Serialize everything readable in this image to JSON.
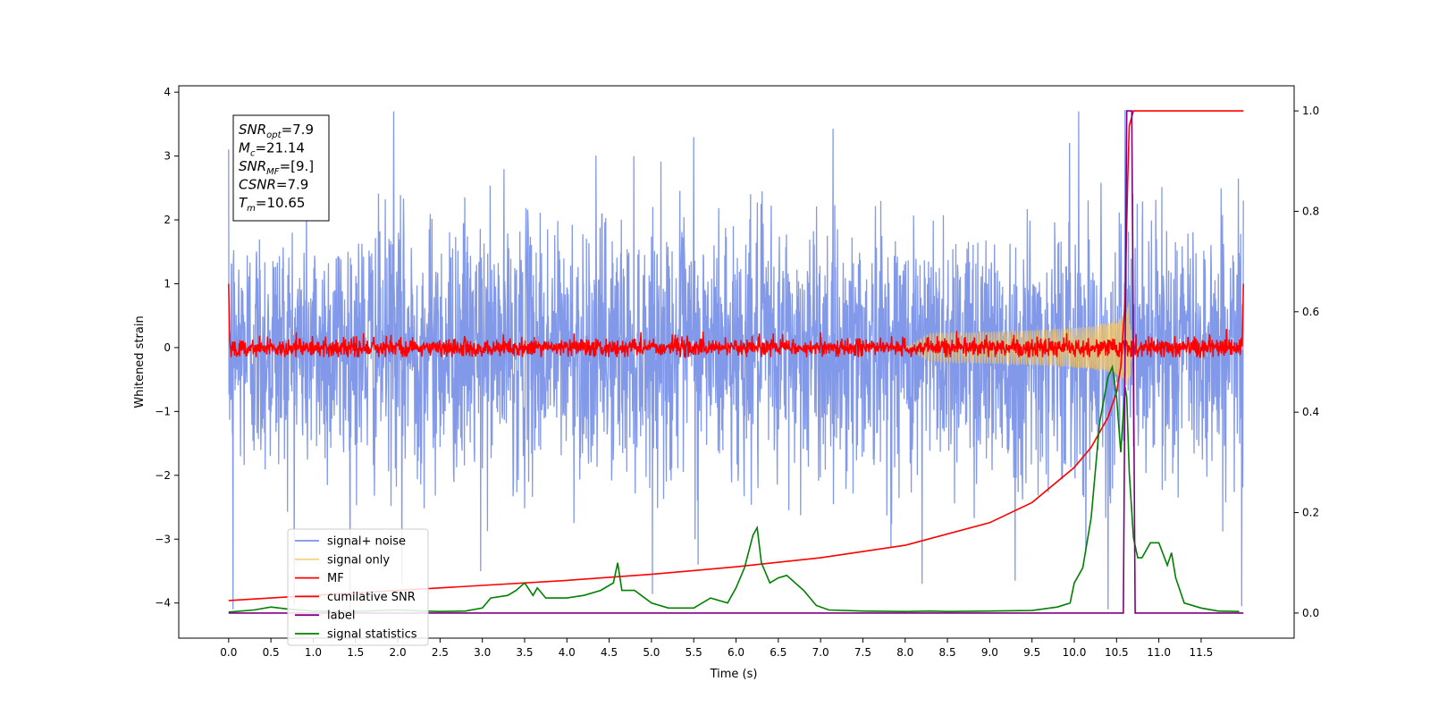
{
  "chart_data": {
    "type": "line",
    "xlabel": "Time (s)",
    "ylabel": "Whitened strain",
    "xlim": [
      -0.59,
      12.6
    ],
    "ylim": [
      -4.55,
      4.1
    ],
    "y2lim": [
      -0.05,
      1.05
    ],
    "x_ticks": [
      0.0,
      0.5,
      1.0,
      1.5,
      2.0,
      2.5,
      3.0,
      3.5,
      4.0,
      4.5,
      5.0,
      5.5,
      6.0,
      6.5,
      7.0,
      7.5,
      8.0,
      8.5,
      9.0,
      9.5,
      10.0,
      10.5,
      11.0,
      11.5
    ],
    "x_tick_labels": [
      "0.0",
      "0.5",
      "1.0",
      "1.5",
      "2.0",
      "2.5",
      "3.0",
      "3.5",
      "4.0",
      "4.5",
      "5.0",
      "5.5",
      "6.0",
      "6.5",
      "7.0",
      "7.5",
      "8.0",
      "8.5",
      "9.0",
      "9.5",
      "10.0",
      "10.5",
      "11.0",
      "11.5"
    ],
    "y_ticks": [
      -4,
      -3,
      -2,
      -1,
      0,
      1,
      2,
      3,
      4
    ],
    "y_tick_labels": [
      "−4",
      "−3",
      "−2",
      "−1",
      "0",
      "1",
      "2",
      "3",
      "4"
    ],
    "y2_ticks": [
      0.0,
      0.2,
      0.4,
      0.6,
      0.8,
      1.0
    ],
    "y2_tick_labels": [
      "0.0",
      "0.2",
      "0.4",
      "0.6",
      "0.8",
      "1.0"
    ],
    "grid": false,
    "legend_position": "lower-left",
    "annotation_lines": [
      {
        "base": "SNR",
        "sub": "opt",
        "rest": "=7.9"
      },
      {
        "base": "M",
        "sub": "c",
        "rest": "=21.14"
      },
      {
        "base": "SNR",
        "sub": "MF",
        "rest": "=[9.]"
      },
      {
        "base": "CSNR",
        "sub": "",
        "rest": "=7.9"
      },
      {
        "base": "T",
        "sub": "m",
        "rest": "=10.65"
      }
    ],
    "series": [
      {
        "name": "signal+ noise",
        "axis": "left",
        "color": "#7b93e8",
        "kind": "noise",
        "x_range": [
          0,
          12
        ],
        "amplitude_sd": 1.0,
        "approx_range": [
          -4.1,
          3.7
        ],
        "extremes": [
          {
            "x": 0.0,
            "y": 3.1
          },
          {
            "x": 0.05,
            "y": -4.1
          },
          {
            "x": 1.95,
            "y": 3.7
          },
          {
            "x": 2.05,
            "y": -3.7
          },
          {
            "x": 2.98,
            "y": -3.5
          },
          {
            "x": 5.5,
            "y": 3.3
          },
          {
            "x": 5.55,
            "y": -3.4
          },
          {
            "x": 8.2,
            "y": -3.7
          },
          {
            "x": 9.3,
            "y": -3.65
          },
          {
            "x": 10.05,
            "y": 3.7
          },
          {
            "x": 10.4,
            "y": -4.1
          },
          {
            "x": 10.6,
            "y": 3.72
          },
          {
            "x": 11.98,
            "y": -4.05
          }
        ]
      },
      {
        "name": "signal only",
        "axis": "left",
        "color": "#f5c55e",
        "kind": "chirp",
        "x_range": [
          0,
          12
        ],
        "merger_time": 10.65,
        "peak_amplitude": 0.75
      },
      {
        "name": "MF",
        "axis": "left",
        "color": "#ff0000",
        "kind": "noise",
        "x_range": [
          0,
          12
        ],
        "amplitude_sd": 0.07,
        "approx_range": [
          -0.15,
          0.35
        ],
        "start_value": 1.0,
        "end_value": 1.0
      },
      {
        "name": "cumilative SNR",
        "axis": "right",
        "color": "#ff0000",
        "x": [
          0,
          0.5,
          1,
          2,
          3,
          4,
          5,
          6,
          7,
          8,
          9,
          9.5,
          10,
          10.2,
          10.4,
          10.5,
          10.55,
          10.6,
          10.63,
          10.65,
          10.7,
          11,
          12
        ],
        "y": [
          0.025,
          0.03,
          0.035,
          0.045,
          0.055,
          0.065,
          0.077,
          0.092,
          0.11,
          0.135,
          0.18,
          0.22,
          0.29,
          0.33,
          0.39,
          0.44,
          0.49,
          0.62,
          0.85,
          0.97,
          1.0,
          1.0,
          1.0
        ]
      },
      {
        "name": "label",
        "axis": "right",
        "color": "#800080",
        "x": [
          0,
          10.58,
          10.62,
          10.68,
          10.72,
          12
        ],
        "y": [
          0,
          0,
          1.0,
          1.0,
          0,
          0
        ]
      },
      {
        "name": "signal statistics",
        "axis": "right",
        "color": "#008000",
        "x": [
          0,
          0.3,
          0.5,
          0.7,
          1.0,
          1.3,
          1.6,
          2.0,
          2.3,
          2.5,
          2.8,
          3.0,
          3.1,
          3.3,
          3.4,
          3.5,
          3.6,
          3.65,
          3.75,
          3.85,
          4.0,
          4.2,
          4.4,
          4.55,
          4.6,
          4.65,
          4.8,
          5.0,
          5.2,
          5.5,
          5.7,
          5.9,
          6.0,
          6.1,
          6.2,
          6.25,
          6.3,
          6.4,
          6.5,
          6.6,
          6.8,
          6.95,
          7.1,
          7.5,
          8.0,
          8.3,
          8.5,
          9.0,
          9.5,
          9.8,
          9.95,
          10.0,
          10.1,
          10.2,
          10.3,
          10.4,
          10.45,
          10.5,
          10.55,
          10.6,
          10.62,
          10.65,
          10.7,
          10.75,
          10.8,
          10.9,
          11.0,
          11.1,
          11.15,
          11.2,
          11.3,
          11.5,
          11.7,
          11.95
        ],
        "y": [
          0.002,
          0.006,
          0.012,
          0.008,
          0.004,
          0.003,
          0.004,
          0.006,
          0.004,
          0.003,
          0.004,
          0.01,
          0.03,
          0.035,
          0.045,
          0.06,
          0.035,
          0.05,
          0.03,
          0.03,
          0.03,
          0.035,
          0.045,
          0.06,
          0.1,
          0.045,
          0.045,
          0.02,
          0.01,
          0.01,
          0.03,
          0.02,
          0.05,
          0.09,
          0.155,
          0.17,
          0.1,
          0.06,
          0.07,
          0.075,
          0.045,
          0.015,
          0.006,
          0.004,
          0.003,
          0.004,
          0.003,
          0.004,
          0.005,
          0.012,
          0.02,
          0.06,
          0.09,
          0.19,
          0.38,
          0.47,
          0.49,
          0.43,
          0.32,
          0.45,
          0.43,
          0.28,
          0.15,
          0.11,
          0.11,
          0.14,
          0.14,
          0.095,
          0.12,
          0.07,
          0.02,
          0.01,
          0.004,
          0.003
        ]
      }
    ]
  }
}
